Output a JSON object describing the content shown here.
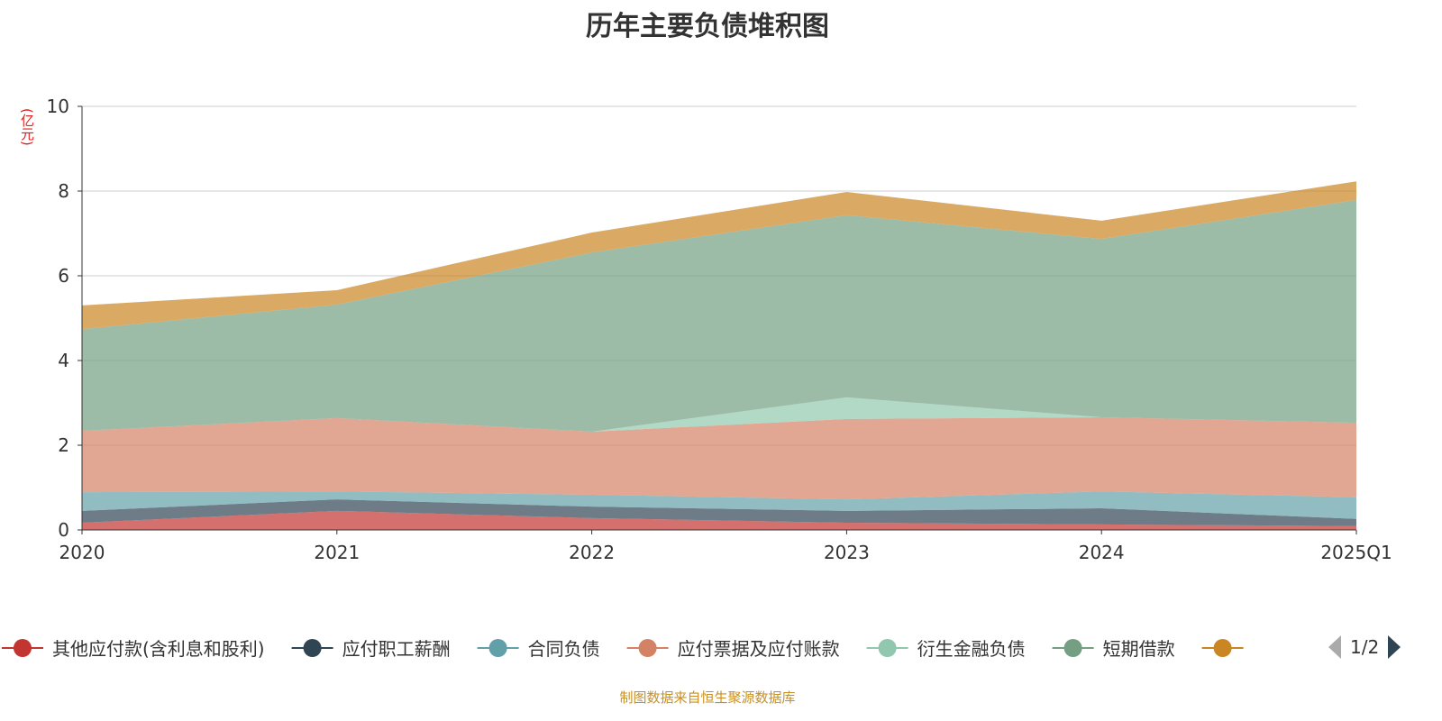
{
  "chart_data": {
    "type": "area",
    "stacked": true,
    "title": "历年主要负债堆积图",
    "ylabel": "(亿元)",
    "ylim": [
      0,
      10
    ],
    "yticks": [
      0,
      2,
      4,
      6,
      8,
      10
    ],
    "categories": [
      "2020",
      "2021",
      "2022",
      "2023",
      "2024",
      "2025Q1"
    ],
    "series": [
      {
        "name": "其他应付款(含利息和股利)",
        "color": "#c23531",
        "values": [
          0.17,
          0.45,
          0.28,
          0.17,
          0.13,
          0.09
        ]
      },
      {
        "name": "应付职工薪酬",
        "color": "#2f4554",
        "values": [
          0.28,
          0.27,
          0.27,
          0.28,
          0.38,
          0.17
        ]
      },
      {
        "name": "合同负债",
        "color": "#61a0a8",
        "values": [
          0.44,
          0.19,
          0.28,
          0.27,
          0.4,
          0.51
        ]
      },
      {
        "name": "应付票据及应付账款",
        "color": "#d48265",
        "values": [
          1.45,
          1.73,
          1.49,
          1.9,
          1.75,
          1.76
        ]
      },
      {
        "name": "衍生金融负债",
        "color": "#91c7ae",
        "values": [
          0,
          0,
          0,
          0.51,
          0,
          0
        ]
      },
      {
        "name": "短期借款",
        "color": "#749f83",
        "values": [
          2.4,
          2.68,
          4.23,
          4.3,
          4.21,
          5.26
        ]
      },
      {
        "name": "",
        "color": "#ca8622",
        "values": [
          0.56,
          0.34,
          0.47,
          0.55,
          0.43,
          0.44
        ]
      }
    ],
    "grid": true,
    "legend": "bottom"
  },
  "legend_page": "1/2",
  "source": "制图数据来自恒生聚源数据库"
}
